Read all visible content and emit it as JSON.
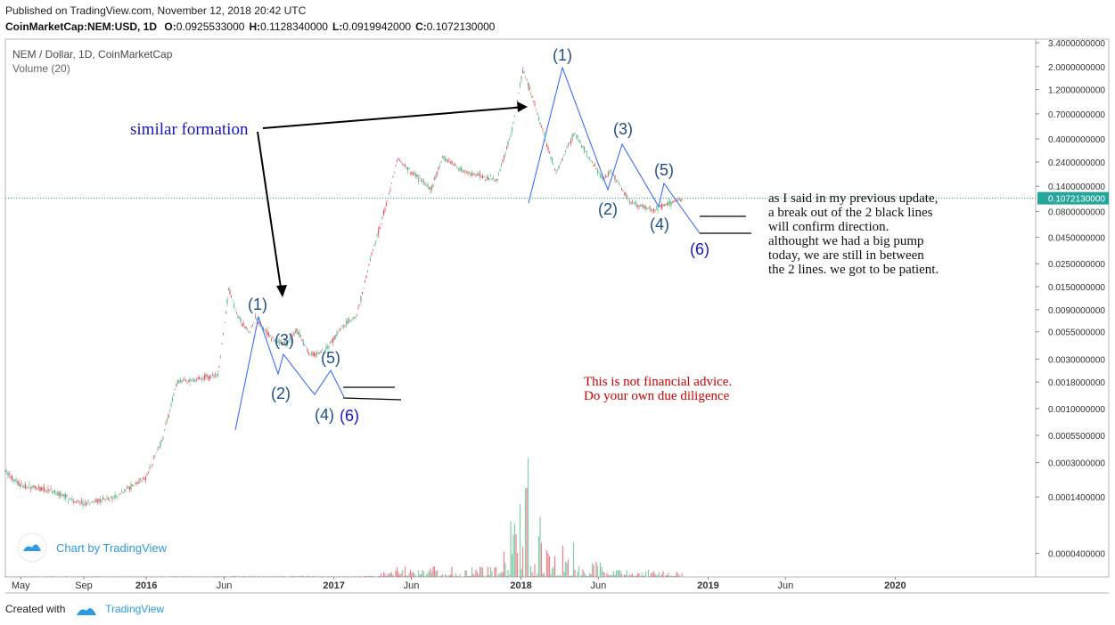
{
  "header": {
    "published": "Published on TradingView.com, November 12, 2018 20:42 UTC",
    "symbol": "CoinMarketCap:NEM:USD, 1D",
    "ohlc": [
      {
        "k": "O:",
        "v": "0.0925533000"
      },
      {
        "k": "H:",
        "v": "0.1128340000"
      },
      {
        "k": "L:",
        "v": "0.0919942000"
      },
      {
        "k": "C:",
        "v": "0.1072130000"
      }
    ]
  },
  "legend": {
    "title": "NEM / Dollar, 1D, CoinMarketCap",
    "volume": "Volume (20)"
  },
  "watermark": "Chart by TradingView",
  "footer": {
    "created_with": "Created with",
    "brand": "TradingView"
  },
  "colors": {
    "up": "#53b987",
    "down": "#eb4d5c",
    "wave": "#2962ff",
    "label": "#1e4f8a",
    "annotation_blue": "#1414c8",
    "annotation_red": "#cc0000",
    "price_line": "#26a69a"
  },
  "chart_data": {
    "type": "candlestick",
    "title": "NEM / Dollar, 1D, CoinMarketCap",
    "y_scale": "log",
    "ylim": [
      3e-05,
      3.4
    ],
    "y_ticks": [
      "3.4000000000",
      "2.0000000000",
      "1.2000000000",
      "0.7000000000",
      "0.4000000000",
      "0.2400000000",
      "0.1400000000",
      "0.0800000000",
      "0.0450000000",
      "0.0250000000",
      "0.0150000000",
      "0.0090000000",
      "0.0055000000",
      "0.0030000000",
      "0.0018000000",
      "0.0010000000",
      "0.0005500000",
      "0.0003000000",
      "0.0001400000",
      "0.0000400000"
    ],
    "x_ticks": [
      "May",
      "Sep",
      "2016",
      "Jun",
      "2017",
      "Jun",
      "2018",
      "Jun",
      "2019",
      "Jun",
      "2020"
    ],
    "last_price_label": "0.1072130000",
    "price_path": [
      [
        "2015-04-01",
        0.00025
      ],
      [
        "2015-05-01",
        0.00018
      ],
      [
        "2015-07-01",
        0.00016
      ],
      [
        "2015-09-01",
        0.00012
      ],
      [
        "2015-11-01",
        0.00014
      ],
      [
        "2016-01-01",
        0.00022
      ],
      [
        "2016-02-01",
        0.0005
      ],
      [
        "2016-03-01",
        0.0018
      ],
      [
        "2016-04-01",
        0.0019
      ],
      [
        "2016-05-20",
        0.0021
      ],
      [
        "2016-06-10",
        0.0145
      ],
      [
        "2016-06-25",
        0.008
      ],
      [
        "2016-07-20",
        0.0055
      ],
      [
        "2016-08-01",
        0.0074
      ],
      [
        "2016-09-01",
        0.0048
      ],
      [
        "2016-10-01",
        0.0041
      ],
      [
        "2016-10-20",
        0.0058
      ],
      [
        "2016-11-15",
        0.0033
      ],
      [
        "2016-12-15",
        0.0036
      ],
      [
        "2017-01-15",
        0.006
      ],
      [
        "2017-02-15",
        0.008
      ],
      [
        "2017-03-15",
        0.03
      ],
      [
        "2017-04-15",
        0.1
      ],
      [
        "2017-05-05",
        0.26
      ],
      [
        "2017-06-01",
        0.19
      ],
      [
        "2017-07-10",
        0.13
      ],
      [
        "2017-08-01",
        0.27
      ],
      [
        "2017-09-15",
        0.19
      ],
      [
        "2017-11-15",
        0.16
      ],
      [
        "2017-12-15",
        0.5
      ],
      [
        "2018-01-05",
        1.9
      ],
      [
        "2018-02-05",
        0.62
      ],
      [
        "2018-03-10",
        0.19
      ],
      [
        "2018-04-15",
        0.46
      ],
      [
        "2018-06-10",
        0.16
      ],
      [
        "2018-06-25",
        0.2
      ],
      [
        "2018-08-01",
        0.098
      ],
      [
        "2018-09-15",
        0.083
      ],
      [
        "2018-11-12",
        0.107
      ]
    ],
    "annotations": {
      "wave_labels": [
        "(1)",
        "(3)",
        "(5)",
        "(2)",
        "(4)",
        "(6)"
      ],
      "similar_formation": "similar formation",
      "note_lines": [
        "as I said in my previous update,",
        "a break out of the 2 black lines",
        "will confirm direction.",
        "althought we had a big pump",
        "today, we are still in between",
        "the 2 lines. we got to be patient."
      ],
      "disclaimer_lines": [
        "This is not financial advice.",
        "Do your own due diligence"
      ]
    }
  }
}
